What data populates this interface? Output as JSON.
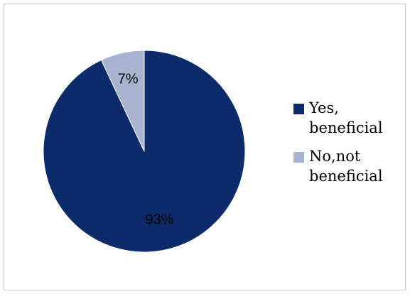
{
  "chart_data": {
    "type": "pie",
    "title": "",
    "categories": [
      "Yes, beneficial",
      "No,not beneficial"
    ],
    "values": [
      93,
      7
    ],
    "labels": [
      "93%",
      "7%"
    ],
    "colors": [
      "#0d2a6b",
      "#a8b4cf"
    ],
    "start_angle_deg": 0,
    "legend_position": "right"
  },
  "legend": {
    "items": [
      {
        "label": "Yes, beneficial",
        "color": "#0d2a6b"
      },
      {
        "label": "No,not beneficial",
        "color": "#a8b4cf"
      }
    ]
  }
}
